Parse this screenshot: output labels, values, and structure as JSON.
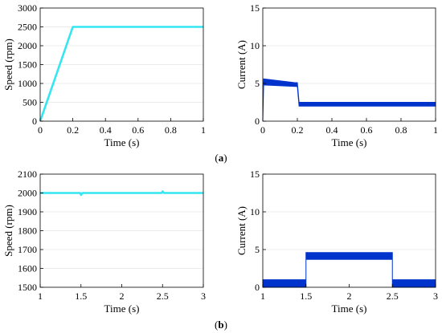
{
  "captions": {
    "a": {
      "open": "(",
      "letter": "a",
      "close": ")"
    },
    "b": {
      "open": "(",
      "letter": "b",
      "close": ")"
    }
  },
  "chart_data": [
    {
      "id": "a-speed",
      "type": "line",
      "xlabel": "Time (s)",
      "ylabel": "Speed (rpm)",
      "xlim": [
        0,
        1
      ],
      "ylim": [
        0,
        3000
      ],
      "xticks": [
        0,
        0.2,
        0.4,
        0.6,
        0.8,
        1
      ],
      "xtick_labels": [
        "0",
        "0.2",
        "0.4",
        "0.6",
        "0.8",
        "1"
      ],
      "yticks": [
        0,
        500,
        1000,
        1500,
        2000,
        2500,
        3000
      ],
      "ytick_labels": [
        "0",
        "500",
        "1000",
        "1500",
        "2000",
        "2500",
        "3000"
      ],
      "series": [
        {
          "color": "#33e6f0",
          "x": [
            0,
            0.2,
            1
          ],
          "y": [
            0,
            2500,
            2500
          ]
        }
      ]
    },
    {
      "id": "a-current",
      "type": "line",
      "xlabel": "Time (s)",
      "ylabel": "Current (A)",
      "xlim": [
        0,
        1
      ],
      "ylim": [
        0,
        15
      ],
      "xticks": [
        0,
        0.2,
        0.4,
        0.6,
        0.8,
        1
      ],
      "xtick_labels": [
        "0",
        "0.2",
        "0.4",
        "0.6",
        "0.8",
        "1"
      ],
      "yticks": [
        0,
        5,
        10,
        15
      ],
      "ytick_labels": [
        "0",
        "5",
        "10",
        "15"
      ],
      "series": [
        {
          "color": "#0033cc",
          "band": true,
          "x": [
            0,
            0.005,
            0.19,
            0.2,
            0.21,
            1
          ],
          "ylo": [
            0,
            4.8,
            4.6,
            4.6,
            2.0,
            2.0
          ],
          "yhi": [
            0,
            5.6,
            5.1,
            5.1,
            2.5,
            2.5
          ]
        }
      ]
    },
    {
      "id": "b-speed",
      "type": "line",
      "xlabel": "Time (s)",
      "ylabel": "Speed (rpm)",
      "xlim": [
        1,
        3
      ],
      "ylim": [
        1500,
        2100
      ],
      "xticks": [
        1,
        1.5,
        2,
        2.5,
        3
      ],
      "xtick_labels": [
        "1",
        "1.5",
        "2",
        "2.5",
        "3"
      ],
      "yticks": [
        1500,
        1600,
        1700,
        1800,
        1900,
        2000,
        2100
      ],
      "ytick_labels": [
        "1500",
        "1600",
        "1700",
        "1800",
        "1900",
        "2000",
        "2100"
      ],
      "series": [
        {
          "color": "#33e6f0",
          "x": [
            1,
            1.49,
            1.5,
            1.52,
            2.49,
            2.5,
            2.52,
            3
          ],
          "y": [
            2000,
            2000,
            1990,
            2000,
            2000,
            2008,
            2000,
            2000
          ]
        }
      ]
    },
    {
      "id": "b-current",
      "type": "line",
      "xlabel": "Time (s)",
      "ylabel": "Current (A)",
      "xlim": [
        1,
        3
      ],
      "ylim": [
        0,
        15
      ],
      "xticks": [
        1,
        1.5,
        2,
        2.5,
        3
      ],
      "xtick_labels": [
        "1",
        "1.5",
        "2",
        "2.5",
        "3"
      ],
      "yticks": [
        0,
        5,
        10,
        15
      ],
      "ytick_labels": [
        "0",
        "5",
        "10",
        "15"
      ],
      "series": [
        {
          "color": "#0033cc",
          "band": true,
          "x": [
            1,
            1.5,
            1.5,
            2.5,
            2.5,
            3
          ],
          "ylo": [
            0,
            0,
            3.7,
            3.7,
            0,
            0
          ],
          "yhi": [
            1.0,
            1.0,
            4.6,
            4.6,
            1.0,
            1.0
          ]
        }
      ]
    }
  ]
}
